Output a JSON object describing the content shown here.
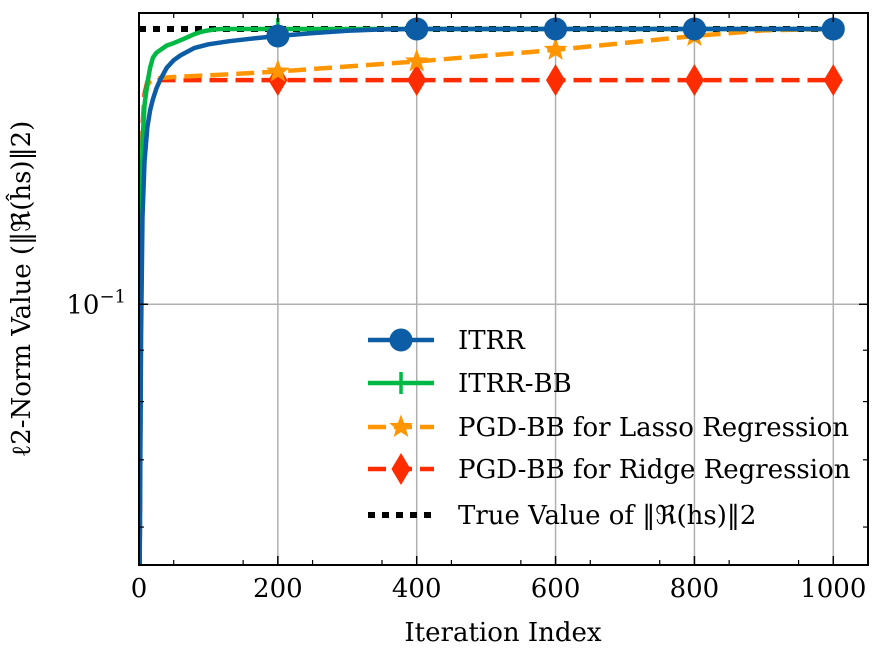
{
  "chart_data": {
    "type": "line",
    "title": "",
    "xlabel": "Iteration Index",
    "ylabel": "ℓ2-Norm Value (‖ℜ(ĥs)‖2)",
    "xlim": [
      0,
      1050
    ],
    "ylim": [
      0.055,
      0.195
    ],
    "yscale": "log",
    "x_ticks": [
      0,
      200,
      400,
      600,
      800,
      1000
    ],
    "x_tick_labels": [
      "0",
      "200",
      "400",
      "600",
      "800",
      "1000"
    ],
    "y_major_ticks": [
      0.1
    ],
    "y_major_tick_labels": [
      {
        "base": "10",
        "exp": "−1"
      }
    ],
    "y_minor_ticks": [
      0.06,
      0.07,
      0.08,
      0.09,
      0.2
    ],
    "grid": true,
    "legend_position": "lower-right",
    "series": [
      {
        "name": "ITRR",
        "color": "#0C5DA5",
        "style": "solid",
        "marker": "circle",
        "x": [
          1,
          3,
          5,
          8,
          12,
          16,
          20,
          25,
          30,
          40,
          50,
          60,
          80,
          100,
          130,
          160,
          200,
          250,
          300,
          350,
          400,
          500,
          600,
          700,
          800,
          900,
          1000
        ],
        "y": [
          0.055,
          0.093,
          0.122,
          0.139,
          0.15,
          0.156,
          0.16,
          0.164,
          0.167,
          0.172,
          0.175,
          0.177,
          0.18,
          0.1815,
          0.1828,
          0.1838,
          0.185,
          0.1862,
          0.1872,
          0.1878,
          0.188,
          0.188,
          0.188,
          0.188,
          0.188,
          0.188,
          0.188
        ],
        "markers_x": [
          200,
          400,
          600,
          800,
          1000
        ]
      },
      {
        "name": "ITRR-BB",
        "color": "#00B945",
        "style": "solid",
        "marker": "plus",
        "x": [
          1,
          3,
          5,
          8,
          12,
          16,
          20,
          25,
          30,
          40,
          50,
          60,
          70,
          80,
          90,
          100,
          110,
          120,
          200,
          400,
          600,
          800,
          1000
        ],
        "y": [
          0.055,
          0.11,
          0.145,
          0.158,
          0.166,
          0.172,
          0.176,
          0.178,
          0.179,
          0.181,
          0.182,
          0.1832,
          0.1845,
          0.1858,
          0.1868,
          0.1874,
          0.1878,
          0.188,
          0.188,
          0.188,
          0.188,
          0.188,
          0.188
        ],
        "markers_x": [
          200,
          400,
          600,
          800,
          1000
        ]
      },
      {
        "name": "PGD-BB for Lasso Regression",
        "color": "#FF9500",
        "style": "dashed",
        "marker": "star",
        "x": [
          1,
          3,
          5,
          8,
          12,
          16,
          20,
          30,
          50,
          100,
          200,
          400,
          600,
          800,
          900,
          1000
        ],
        "y": [
          0.055,
          0.11,
          0.148,
          0.16,
          0.165,
          0.1668,
          0.1676,
          0.168,
          0.1684,
          0.169,
          0.1705,
          0.1745,
          0.1792,
          0.185,
          0.1874,
          0.188
        ],
        "markers_x": [
          200,
          400,
          600,
          800,
          1000
        ]
      },
      {
        "name": "PGD-BB for Ridge Regression",
        "color": "#FF2C00",
        "style": "dashed",
        "marker": "diamond",
        "x": [
          1,
          3,
          5,
          8,
          12,
          16,
          20,
          40,
          100,
          200,
          400,
          600,
          800,
          1000
        ],
        "y": [
          0.055,
          0.11,
          0.15,
          0.162,
          0.1665,
          0.167,
          0.1672,
          0.1672,
          0.1672,
          0.1672,
          0.1672,
          0.1672,
          0.1672,
          0.1672
        ],
        "markers_x": [
          200,
          400,
          600,
          800,
          1000
        ]
      },
      {
        "name": "True Value of ‖ℜ(hs)‖2",
        "color": "#000000",
        "style": "dotted",
        "marker": "none",
        "x": [
          0,
          1000
        ],
        "y": [
          0.188,
          0.188
        ],
        "markers_x": []
      }
    ]
  }
}
